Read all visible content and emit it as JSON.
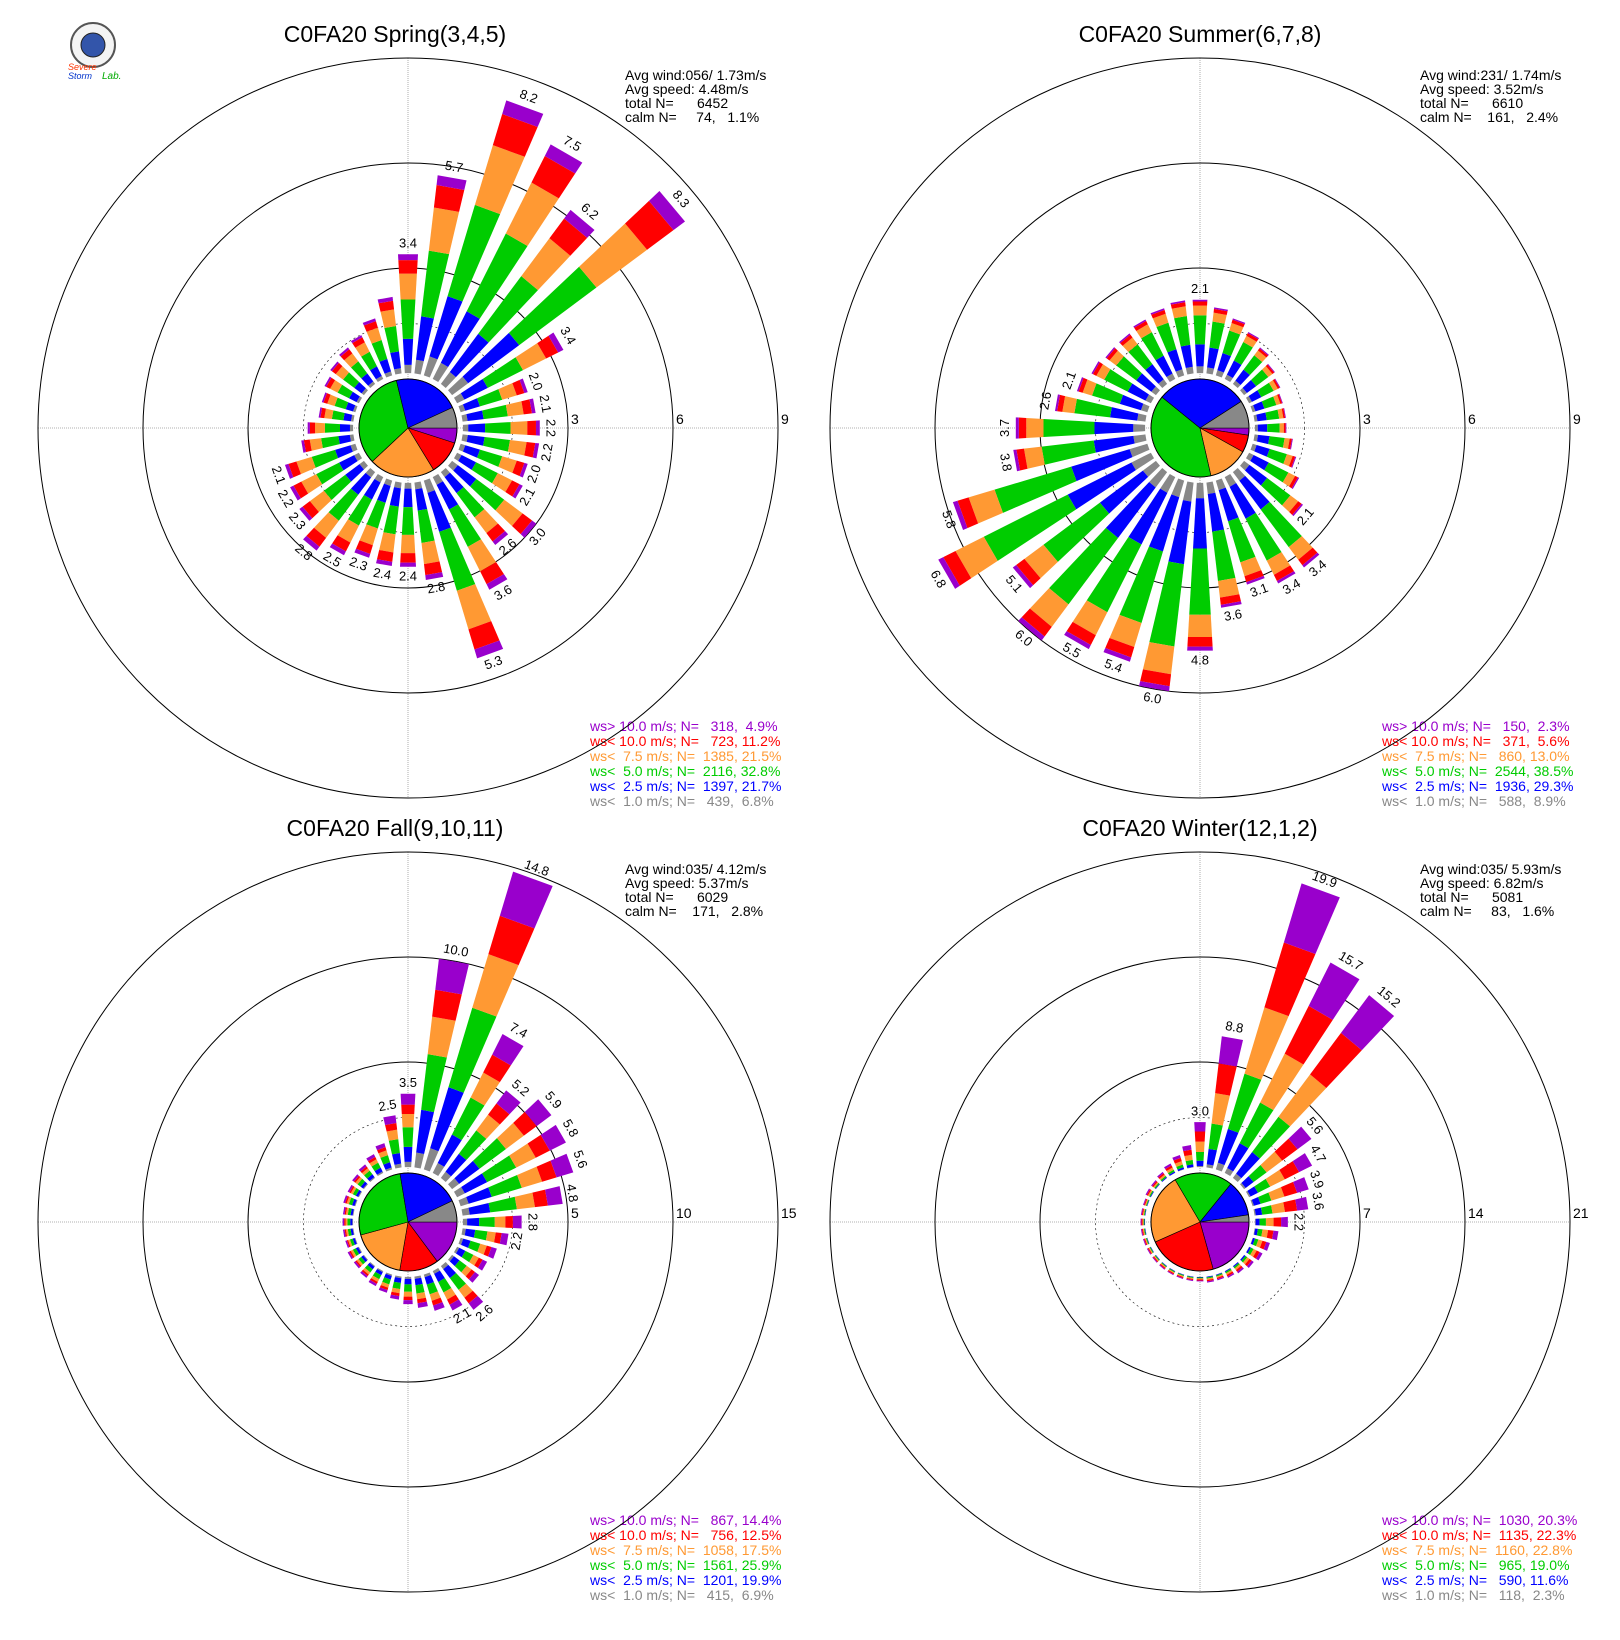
{
  "figure": {
    "logo": {
      "line1": "Severe",
      "line2": "Storm",
      "line3": "Lab."
    },
    "panels": [
      {
        "title": "C0FA20 Spring(3,4,5)",
        "stats": [
          "Avg wind:056/ 1.73m/s",
          "Avg speed: 4.48m/s",
          "total N=      6452",
          "calm N=     74,   1.1%"
        ],
        "legend": [
          "ws> 10.0 m/s; N=   318,  4.9%",
          "ws< 10.0 m/s; N=   723, 11.2%",
          "ws<  7.5 m/s; N=  1385, 21.5%",
          "ws<  5.0 m/s; N=  2116, 32.8%",
          "ws<  2.5 m/s; N=  1397, 21.7%",
          "ws<  1.0 m/s; N=   439,  6.8%"
        ]
      },
      {
        "title": "C0FA20 Summer(6,7,8)",
        "stats": [
          "Avg wind:231/ 1.74m/s",
          "Avg speed: 3.52m/s",
          "total N=      6610",
          "calm N=    161,   2.4%"
        ],
        "legend": [
          "ws> 10.0 m/s; N=   150,  2.3%",
          "ws< 10.0 m/s; N=   371,  5.6%",
          "ws<  7.5 m/s; N=   860, 13.0%",
          "ws<  5.0 m/s; N=  2544, 38.5%",
          "ws<  2.5 m/s; N=  1936, 29.3%",
          "ws<  1.0 m/s; N=   588,  8.9%"
        ]
      },
      {
        "title": "C0FA20 Fall(9,10,11)",
        "stats": [
          "Avg wind:035/ 4.12m/s",
          "Avg speed: 5.37m/s",
          "total N=      6029",
          "calm N=    171,   2.8%"
        ],
        "legend": [
          "ws> 10.0 m/s; N=   867, 14.4%",
          "ws< 10.0 m/s; N=   756, 12.5%",
          "ws<  7.5 m/s; N=  1058, 17.5%",
          "ws<  5.0 m/s; N=  1561, 25.9%",
          "ws<  2.5 m/s; N=  1201, 19.9%",
          "ws<  1.0 m/s; N=   415,  6.9%"
        ]
      },
      {
        "title": "C0FA20 Winter(12,1,2)",
        "stats": [
          "Avg wind:035/ 5.93m/s",
          "Avg speed: 6.82m/s",
          "total N=      5081",
          "calm N=     83,   1.6%"
        ],
        "legend": [
          "ws> 10.0 m/s; N=  1030, 20.3%",
          "ws< 10.0 m/s; N=  1135, 22.3%",
          "ws<  7.5 m/s; N=  1160, 22.8%",
          "ws<  5.0 m/s; N=   965, 19.0%",
          "ws<  2.5 m/s; N=   590, 11.6%",
          "ws<  1.0 m/s; N=   118,  2.3%"
        ]
      }
    ]
  },
  "colors": {
    "ws_gt_10": "#9900cc",
    "ws_lt_10": "#ff0000",
    "ws_lt_7_5": "#ff9933",
    "ws_lt_5": "#00cc00",
    "ws_lt_2_5": "#0000ff",
    "ws_lt_1": "#888888",
    "ring": "#000000",
    "axis_line": "#999999"
  },
  "chart_data": [
    {
      "type": "windrose",
      "title": "C0FA20 Spring(3,4,5)",
      "radial_ticks": [
        "3",
        "6",
        "9"
      ],
      "rmax": 9,
      "bin_labels": [
        "ws> 10.0 m/s",
        "ws< 10.0 m/s",
        "ws<  7.5 m/s",
        "ws<  5.0 m/s",
        "ws<  2.5 m/s",
        "ws<  1.0 m/s"
      ],
      "bin_percent": [
        4.9,
        11.2,
        21.5,
        32.8,
        21.7,
        6.8
      ],
      "direction_step_deg": 10,
      "directions_deg": [
        0,
        10,
        20,
        30,
        40,
        50,
        60,
        70,
        80,
        90,
        100,
        110,
        120,
        130,
        140,
        150,
        160,
        170,
        180,
        190,
        200,
        210,
        220,
        230,
        240,
        250,
        260,
        270,
        280,
        290,
        300,
        310,
        320,
        330,
        340,
        350
      ],
      "totals_percent": [
        3.4,
        5.7,
        8.2,
        7.5,
        6.2,
        8.3,
        3.4,
        2.0,
        2.1,
        2.2,
        2.2,
        2.0,
        2.1,
        3.0,
        2.6,
        3.6,
        5.3,
        2.8,
        2.4,
        2.4,
        2.3,
        2.5,
        2.8,
        2.3,
        2.2,
        2.1,
        1.5,
        1.3,
        1.0,
        1.0,
        1.1,
        1.2,
        1.3,
        1.4,
        1.7,
        2.2
      ],
      "labeled_values": [
        "3.4",
        "5.7",
        "8.2",
        "7.5",
        "6.2",
        "8.3",
        "3.4",
        "2.0",
        "2.1",
        "2.2",
        "2.2",
        "2.0",
        "2.1",
        "3.0",
        "2.6",
        "3.6",
        "5.3",
        "2.8",
        "2.4",
        "2.4",
        "2.3",
        "2.5",
        "2.8",
        "2.3",
        "2.2",
        "2.1"
      ],
      "labeled_directions_deg": [
        0,
        10,
        20,
        30,
        40,
        50,
        60,
        70,
        80,
        90,
        100,
        110,
        120,
        130,
        140,
        150,
        160,
        170,
        180,
        190,
        200,
        210,
        220,
        230,
        240,
        250
      ]
    },
    {
      "type": "windrose",
      "title": "C0FA20 Summer(6,7,8)",
      "radial_ticks": [
        "3",
        "6",
        "9"
      ],
      "rmax": 9,
      "bin_labels": [
        "ws> 10.0 m/s",
        "ws< 10.0 m/s",
        "ws<  7.5 m/s",
        "ws<  5.0 m/s",
        "ws<  2.5 m/s",
        "ws<  1.0 m/s"
      ],
      "bin_percent": [
        2.3,
        5.6,
        13.0,
        38.5,
        29.3,
        8.9
      ],
      "direction_step_deg": 10,
      "directions_deg": [
        0,
        10,
        20,
        30,
        40,
        50,
        60,
        70,
        80,
        90,
        100,
        110,
        120,
        130,
        140,
        150,
        160,
        170,
        180,
        190,
        200,
        210,
        220,
        230,
        240,
        250,
        260,
        270,
        280,
        290,
        300,
        310,
        320,
        330,
        340,
        350
      ],
      "totals_percent": [
        2.1,
        1.9,
        1.7,
        1.5,
        1.3,
        1.1,
        1.0,
        0.9,
        0.9,
        0.9,
        1.1,
        1.3,
        1.6,
        2.1,
        3.4,
        3.4,
        3.1,
        3.6,
        4.8,
        6.0,
        5.4,
        5.5,
        6.0,
        5.1,
        6.8,
        5.8,
        3.8,
        3.7,
        2.6,
        2.1,
        1.9,
        1.8,
        1.8,
        1.9,
        2.0,
        2.1
      ],
      "labeled_values": [
        "2.1",
        "2.1",
        "3.4",
        "3.4",
        "3.1",
        "3.6",
        "4.8",
        "6.0",
        "5.4",
        "5.5",
        "6.0",
        "5.1",
        "6.8",
        "5.8",
        "3.8",
        "3.7",
        "2.6",
        "2.1"
      ],
      "labeled_directions_deg": [
        0,
        130,
        140,
        150,
        160,
        170,
        180,
        190,
        200,
        210,
        220,
        230,
        240,
        250,
        260,
        270,
        280,
        290
      ]
    },
    {
      "type": "windrose",
      "title": "C0FA20 Fall(9,10,11)",
      "radial_ticks": [
        "5",
        "10",
        "15"
      ],
      "rmax": 15,
      "bin_labels": [
        "ws> 10.0 m/s",
        "ws< 10.0 m/s",
        "ws<  7.5 m/s",
        "ws<  5.0 m/s",
        "ws<  2.5 m/s",
        "ws<  1.0 m/s"
      ],
      "bin_percent": [
        14.4,
        12.5,
        17.5,
        25.9,
        19.9,
        6.9
      ],
      "direction_step_deg": 10,
      "directions_deg": [
        0,
        10,
        20,
        30,
        40,
        50,
        60,
        70,
        80,
        90,
        100,
        110,
        120,
        130,
        140,
        150,
        160,
        170,
        180,
        190,
        200,
        210,
        220,
        230,
        240,
        250,
        260,
        270,
        280,
        290,
        300,
        310,
        320,
        330,
        340,
        350
      ],
      "totals_percent": [
        3.5,
        10.0,
        14.8,
        7.4,
        5.2,
        5.9,
        5.8,
        5.6,
        4.8,
        2.8,
        2.2,
        1.8,
        1.6,
        1.6,
        2.6,
        2.1,
        1.8,
        1.5,
        1.3,
        1.1,
        0.9,
        0.8,
        0.7,
        0.6,
        0.6,
        0.5,
        0.5,
        0.5,
        0.5,
        0.6,
        0.6,
        0.7,
        0.8,
        1.0,
        1.3,
        2.5
      ],
      "labeled_values": [
        "3.5",
        "10.0",
        "14.8",
        "7.4",
        "5.2",
        "5.9",
        "5.8",
        "5.6",
        "4.8",
        "2.8",
        "2.2",
        "2.6",
        "2.1",
        "2.5"
      ],
      "labeled_directions_deg": [
        0,
        10,
        20,
        30,
        40,
        50,
        60,
        70,
        80,
        90,
        100,
        140,
        150,
        350
      ]
    },
    {
      "type": "windrose",
      "title": "C0FA20 Winter(12,1,2)",
      "radial_ticks": [
        "7",
        "14",
        "21"
      ],
      "rmax": 21,
      "bin_labels": [
        "ws> 10.0 m/s",
        "ws< 10.0 m/s",
        "ws<  7.5 m/s",
        "ws<  5.0 m/s",
        "ws<  2.5 m/s",
        "ws<  1.0 m/s"
      ],
      "bin_percent": [
        20.3,
        22.3,
        22.8,
        19.0,
        11.6,
        2.3
      ],
      "direction_step_deg": 10,
      "directions_deg": [
        0,
        10,
        20,
        30,
        40,
        50,
        60,
        70,
        80,
        90,
        100,
        110,
        120,
        130,
        140,
        150,
        160,
        170,
        180,
        190,
        200,
        210,
        220,
        230,
        240,
        250,
        260,
        270,
        280,
        290,
        300,
        310,
        320,
        330,
        340,
        350
      ],
      "totals_percent": [
        3.0,
        8.8,
        19.9,
        15.7,
        15.2,
        5.6,
        4.7,
        3.9,
        3.6,
        2.2,
        1.6,
        1.2,
        1.0,
        0.8,
        0.6,
        0.5,
        0.4,
        0.4,
        0.3,
        0.3,
        0.3,
        0.3,
        0.3,
        0.3,
        0.3,
        0.3,
        0.3,
        0.3,
        0.3,
        0.3,
        0.4,
        0.4,
        0.5,
        0.7,
        1.0,
        1.5
      ],
      "labeled_values": [
        "3.0",
        "8.8",
        "19.9",
        "15.7",
        "15.2",
        "5.6",
        "4.7",
        "3.9",
        "3.6",
        "2.2"
      ],
      "labeled_directions_deg": [
        0,
        10,
        20,
        30,
        40,
        50,
        60,
        70,
        80,
        90
      ]
    }
  ]
}
